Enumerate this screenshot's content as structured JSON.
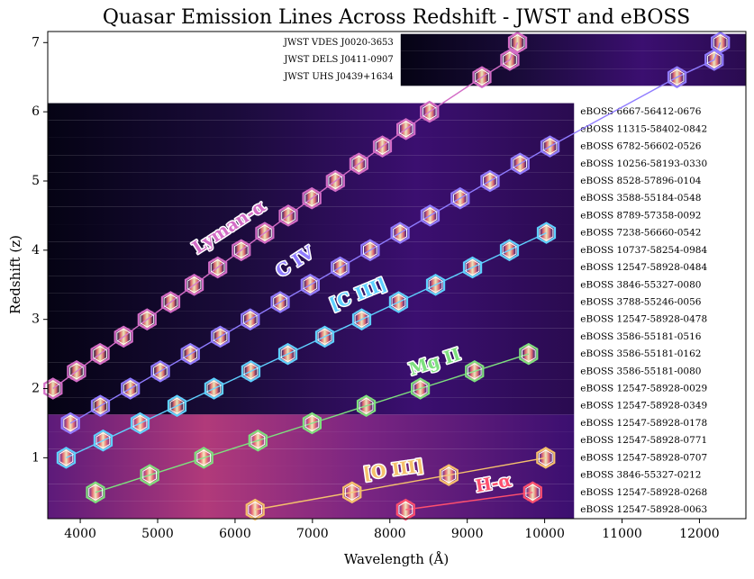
{
  "chart_data": {
    "type": "scatter",
    "title": "Quasar Emission Lines Across Redshift - JWST and eBOSS",
    "x_label": "Wavelength (Å)",
    "y_label": "Redshift (z)",
    "xlim": [
      3580,
      12600
    ],
    "ylim": [
      0.12,
      7.16
    ],
    "xticks": [
      4000,
      5000,
      6000,
      7000,
      8000,
      9000,
      10000,
      11000,
      12000
    ],
    "yticks": [
      1,
      2,
      3,
      4,
      5,
      6,
      7
    ],
    "spectra": [
      {
        "name": "JWST VDES J0020-3653",
        "z": 7.0,
        "range": [
          8140,
          12600
        ]
      },
      {
        "name": "JWST DELS J0411-0907",
        "z": 6.75,
        "range": [
          8140,
          12600
        ]
      },
      {
        "name": "JWST UHS J0439+1634",
        "z": 6.5,
        "range": [
          8140,
          12600
        ]
      },
      {
        "name": "eBOSS 6667-56412-0676",
        "z": 6.0,
        "range": [
          3580,
          10380
        ]
      },
      {
        "name": "eBOSS 11315-58402-0842",
        "z": 5.75,
        "range": [
          3580,
          10380
        ]
      },
      {
        "name": "eBOSS 6782-56602-0526",
        "z": 5.5,
        "range": [
          3580,
          10380
        ]
      },
      {
        "name": "eBOSS 10256-58193-0330",
        "z": 5.25,
        "range": [
          3580,
          10380
        ]
      },
      {
        "name": "eBOSS 8528-57896-0104",
        "z": 5.0,
        "range": [
          3580,
          10380
        ]
      },
      {
        "name": "eBOSS 3588-55184-0548",
        "z": 4.75,
        "range": [
          3580,
          10380
        ]
      },
      {
        "name": "eBOSS 8789-57358-0092",
        "z": 4.5,
        "range": [
          3580,
          10380
        ]
      },
      {
        "name": "eBOSS 7238-56660-0542",
        "z": 4.25,
        "range": [
          3580,
          10380
        ]
      },
      {
        "name": "eBOSS 10737-58254-0984",
        "z": 4.0,
        "range": [
          3580,
          10380
        ]
      },
      {
        "name": "eBOSS 12547-58928-0484",
        "z": 3.75,
        "range": [
          3580,
          10380
        ]
      },
      {
        "name": "eBOSS 3846-55327-0080",
        "z": 3.5,
        "range": [
          3580,
          10380
        ]
      },
      {
        "name": "eBOSS 3788-55246-0056",
        "z": 3.25,
        "range": [
          3580,
          10380
        ]
      },
      {
        "name": "eBOSS 12547-58928-0478",
        "z": 3.0,
        "range": [
          3580,
          10380
        ]
      },
      {
        "name": "eBOSS 3586-55181-0516",
        "z": 2.75,
        "range": [
          3580,
          10380
        ]
      },
      {
        "name": "eBOSS 3586-55181-0162",
        "z": 2.5,
        "range": [
          3580,
          10380
        ]
      },
      {
        "name": "eBOSS 3586-55181-0080",
        "z": 2.25,
        "range": [
          3580,
          10380
        ]
      },
      {
        "name": "eBOSS 12547-58928-0029",
        "z": 2.0,
        "range": [
          3580,
          10380
        ]
      },
      {
        "name": "eBOSS 12547-58928-0349",
        "z": 1.75,
        "range": [
          3580,
          10380
        ]
      },
      {
        "name": "eBOSS 12547-58928-0178",
        "z": 1.5,
        "range": [
          3580,
          10380
        ]
      },
      {
        "name": "eBOSS 12547-58928-0771",
        "z": 1.25,
        "range": [
          3580,
          10380
        ]
      },
      {
        "name": "eBOSS 12547-58928-0707",
        "z": 1.0,
        "range": [
          3580,
          10380
        ]
      },
      {
        "name": "eBOSS 3846-55327-0212",
        "z": 0.75,
        "range": [
          3580,
          10380
        ]
      },
      {
        "name": "eBOSS 12547-58928-0268",
        "z": 0.5,
        "range": [
          3580,
          10380
        ]
      },
      {
        "name": "eBOSS 12547-58928-0063",
        "z": 0.25,
        "range": [
          3580,
          10380
        ]
      }
    ],
    "series": [
      {
        "name": "Lyman-α",
        "color": "#d36cc6",
        "x": [
          3648,
          3952,
          4256,
          4560,
          4864,
          5168,
          5472,
          5776,
          6080,
          6384,
          6688,
          6992,
          7296,
          7600,
          7904,
          8208,
          8512,
          9190,
          9550,
          9650
        ],
        "values": [
          2.0,
          2.25,
          2.5,
          2.75,
          3.0,
          3.25,
          3.5,
          3.75,
          4.0,
          4.25,
          4.5,
          4.75,
          5.0,
          5.25,
          5.5,
          5.75,
          6.0,
          6.5,
          6.75,
          7.0
        ]
      },
      {
        "name": "C IV",
        "color": "#8f7bff",
        "x": [
          3873,
          4260,
          4647,
          5034,
          5422,
          5809,
          6196,
          6583,
          6971,
          7358,
          7745,
          8132,
          8520,
          8908,
          9294,
          9682,
          10069,
          11710,
          12190,
          12270
        ],
        "values": [
          1.5,
          1.75,
          2.0,
          2.25,
          2.5,
          2.75,
          3.0,
          3.25,
          3.5,
          3.75,
          4.0,
          4.25,
          4.5,
          4.75,
          5.0,
          5.25,
          5.5,
          6.5,
          6.75,
          7.0
        ]
      },
      {
        "name": "[C III]",
        "color": "#5fd0ff",
        "x": [
          3818,
          4295,
          4773,
          5250,
          5727,
          6204,
          6682,
          7159,
          7636,
          8113,
          8591,
          9068,
          9545,
          10022
        ],
        "values": [
          1.0,
          1.25,
          1.5,
          1.75,
          2.0,
          2.25,
          2.5,
          2.75,
          3.0,
          3.25,
          3.5,
          3.75,
          4.0,
          4.25
        ]
      },
      {
        "name": "Mg II",
        "color": "#7ee07e",
        "x": [
          4197,
          4897,
          5596,
          6296,
          6995,
          7695,
          8394,
          9094,
          9793
        ],
        "values": [
          0.5,
          0.75,
          1.0,
          1.25,
          1.5,
          1.75,
          2.0,
          2.25,
          2.5
        ]
      },
      {
        "name": "[O III]",
        "color": "#f5c16c",
        "x": [
          6259,
          7511,
          8762,
          10014
        ],
        "values": [
          0.25,
          0.5,
          0.75,
          1.0
        ]
      },
      {
        "name": "H-α",
        "color": "#ff4f6e",
        "x": [
          8204,
          9845
        ],
        "values": [
          0.25,
          0.5
        ]
      }
    ]
  }
}
